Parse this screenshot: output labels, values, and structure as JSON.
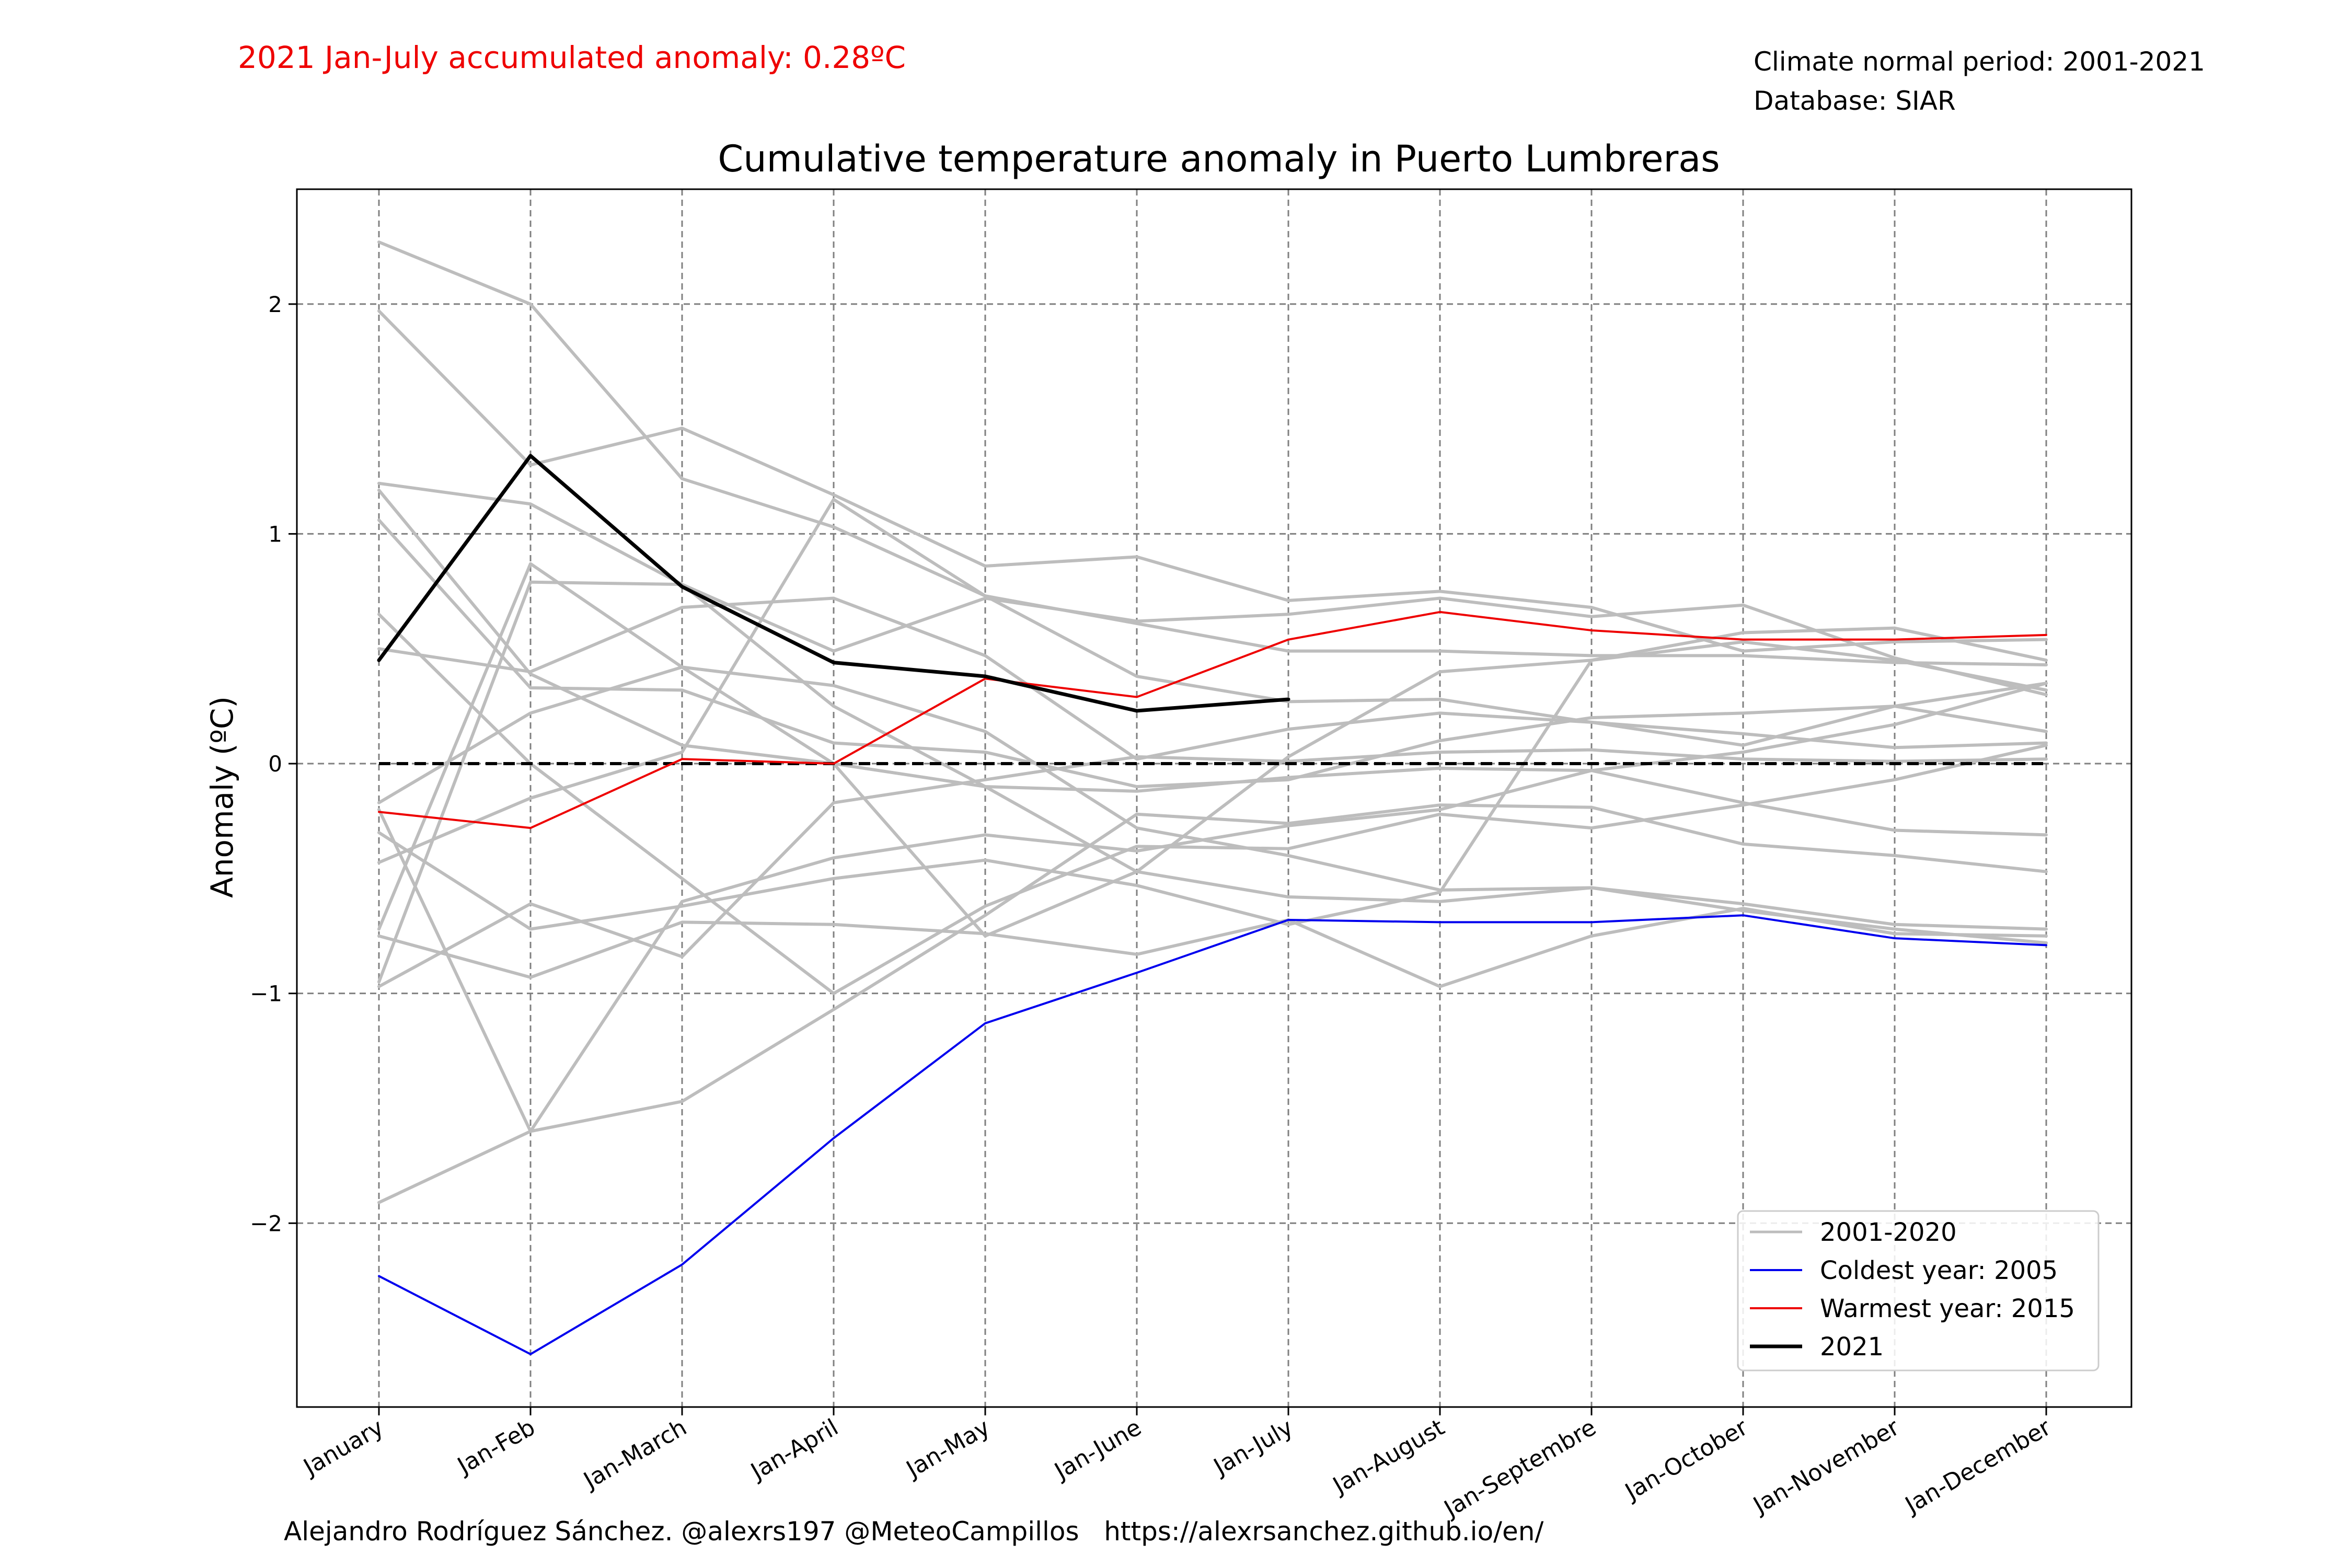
{
  "header": {
    "accumulated_anomaly": "2021 Jan-July accumulated anomaly: 0.28ºC",
    "normal_period": "Climate normal period: 2001-2021",
    "database": "Database: SIAR"
  },
  "footer": {
    "credit": "Alejandro Rodríguez Sánchez. @alexrs197 @MeteoCampillos   https://alexrsanchez.github.io/en/"
  },
  "colors": {
    "historical": "#bdbdbd",
    "coldest": "#0000ee",
    "warmest": "#ee0000",
    "current": "#000000",
    "grid": "#808080"
  },
  "chart_data": {
    "type": "line",
    "title": "Cumulative temperature anomaly in Puerto Lumbreras",
    "xlabel": "",
    "ylabel": "Anomaly (ºC)",
    "ylim": [
      -2.8,
      2.5
    ],
    "yticks": [
      -2,
      -1,
      0,
      1,
      2
    ],
    "grid": true,
    "legend_position": "lower-right",
    "categories": [
      "January",
      "Jan-Feb",
      "Jan-March",
      "Jan-April",
      "Jan-May",
      "Jan-June",
      "Jan-July",
      "Jan-August",
      "Jan-Septembre",
      "Jan-October",
      "Jan-November",
      "Jan-December"
    ],
    "legend": [
      {
        "label": "2001-2020",
        "key": "historical"
      },
      {
        "label": "Coldest year: 2005",
        "key": "coldest"
      },
      {
        "label": "Warmest year: 2015",
        "key": "warmest"
      },
      {
        "label": "2021",
        "key": "current"
      }
    ],
    "zero_line": 0,
    "historical_series": [
      [
        2.27,
        2.0,
        1.24,
        1.03,
        0.73,
        0.61,
        0.49,
        0.49,
        0.47,
        0.47,
        0.44,
        0.43
      ],
      [
        1.97,
        1.3,
        1.46,
        1.17,
        0.86,
        0.9,
        0.71,
        0.75,
        0.68,
        0.49,
        0.53,
        0.54
      ],
      [
        1.22,
        1.13,
        0.78,
        0.49,
        0.72,
        0.62,
        0.65,
        0.72,
        0.64,
        0.69,
        0.46,
        0.3
      ],
      [
        1.19,
        0.39,
        0.08,
        0.0,
        -0.1,
        -0.12,
        -0.06,
        -0.02,
        -0.03,
        -0.17,
        -0.29,
        -0.31
      ],
      [
        1.06,
        0.33,
        0.32,
        0.09,
        0.05,
        -0.1,
        -0.07,
        0.1,
        0.2,
        0.22,
        0.25,
        0.35
      ],
      [
        0.65,
        0.0,
        -0.5,
        -1.0,
        -0.62,
        -0.36,
        -0.37,
        -0.22,
        -0.28,
        -0.18,
        -0.07,
        0.08
      ],
      [
        0.5,
        0.4,
        0.68,
        0.72,
        0.47,
        0.02,
        0.15,
        0.22,
        0.18,
        0.08,
        0.25,
        0.14
      ],
      [
        -0.17,
        0.22,
        0.42,
        0.34,
        0.14,
        -0.28,
        -0.4,
        -0.55,
        -0.54,
        -0.61,
        -0.7,
        -0.72
      ],
      [
        -0.43,
        -0.15,
        0.05,
        1.15,
        0.73,
        0.38,
        0.27,
        0.28,
        0.18,
        0.13,
        0.07,
        0.09
      ],
      [
        -0.72,
        0.87,
        0.42,
        0.0,
        -0.75,
        -0.47,
        -0.58,
        -0.6,
        -0.54,
        -0.64,
        -0.72,
        -0.78
      ],
      [
        -0.97,
        -0.61,
        -0.84,
        -0.17,
        -0.07,
        0.03,
        0.01,
        0.05,
        0.06,
        0.02,
        0.01,
        0.02
      ],
      [
        -0.75,
        -0.93,
        -0.69,
        -0.7,
        -0.74,
        -0.83,
        -0.68,
        -0.97,
        -0.75,
        -0.63,
        -0.74,
        -0.75
      ],
      [
        -1.91,
        -1.6,
        -1.47,
        -1.07,
        -0.66,
        -0.22,
        -0.26,
        -0.18,
        -0.19,
        -0.35,
        -0.4,
        -0.47
      ],
      [
        -0.2,
        -1.6,
        -0.6,
        -0.41,
        -0.31,
        -0.38,
        -0.27,
        -0.2,
        -0.03,
        0.05,
        0.17,
        0.35
      ],
      [
        -0.3,
        -0.72,
        -0.62,
        -0.5,
        -0.42,
        -0.53,
        -0.7,
        -0.56,
        0.45,
        0.57,
        0.59,
        0.45
      ],
      [
        -0.95,
        0.79,
        0.78,
        0.25,
        -0.1,
        -0.47,
        0.03,
        0.4,
        0.45,
        0.53,
        0.45,
        0.32
      ]
    ],
    "coldest_series": [
      -2.23,
      -2.57,
      -2.18,
      -1.63,
      -1.13,
      -0.91,
      -0.68,
      -0.69,
      -0.69,
      -0.66,
      -0.76,
      -0.79
    ],
    "warmest_series": [
      -0.21,
      -0.28,
      0.02,
      0.0,
      0.37,
      0.29,
      0.54,
      0.66,
      0.58,
      0.54,
      0.54,
      0.56
    ],
    "current_series": [
      0.45,
      1.34,
      0.77,
      0.44,
      0.38,
      0.23,
      0.28
    ]
  }
}
